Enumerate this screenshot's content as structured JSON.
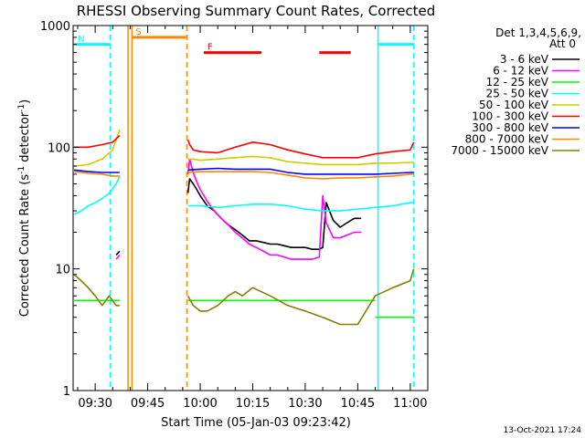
{
  "chart_data": {
    "type": "line",
    "title": "RHESSI Observing Summary Count Rates, Corrected",
    "xlabel": "Start Time (05-Jan-03 09:23:42)",
    "ylabel_main": "Corrected Count Rate (s",
    "ylabel_sup1": "-1",
    "ylabel_mid": " detector",
    "ylabel_sup2": "-1",
    "ylabel_end": ")",
    "yscale": "log",
    "xlim_min": [
      563.7,
      665
    ],
    "ylim": [
      1,
      1000
    ],
    "x_ticks": [
      {
        "value": 570,
        "label": "09:30"
      },
      {
        "value": 585,
        "label": "09:45"
      },
      {
        "value": 600,
        "label": "10:00"
      },
      {
        "value": 615,
        "label": "10:15"
      },
      {
        "value": 630,
        "label": "10:30"
      },
      {
        "value": 645,
        "label": "10:45"
      },
      {
        "value": 660,
        "label": "11:00"
      }
    ],
    "y_ticks": [
      {
        "value": 1,
        "label": "1"
      },
      {
        "value": 10,
        "label": "10"
      },
      {
        "value": 100,
        "label": "100"
      },
      {
        "value": 1000,
        "label": "1000"
      }
    ],
    "legend_header": [
      "Det 1,3,4,5,6,9,",
      "Att 0"
    ],
    "legend_position": "right",
    "series": [
      {
        "name": "3 - 6 keV",
        "color": "#000000",
        "segments": [
          {
            "x": [
              564,
              570,
              576,
              577
            ],
            "y": [
              null,
              null,
              13,
              14
            ]
          },
          {
            "x": [
              596.5,
              597,
              598,
              599,
              600,
              602,
              604,
              606,
              608,
              610,
              612,
              614,
              616,
              618,
              620,
              622,
              624,
              626,
              628,
              630,
              632,
              634,
              635,
              636,
              638,
              640,
              642,
              644,
              646
            ],
            "y": [
              42,
              55,
              50,
              45,
              40,
              33,
              30,
              26,
              23,
              21,
              19,
              17,
              17,
              16.5,
              16,
              16,
              15.5,
              15,
              15,
              15,
              14.5,
              14.5,
              15,
              35,
              25,
              22,
              24,
              26,
              26
            ]
          }
        ]
      },
      {
        "name": "6 - 12 keV",
        "color": "#ff00ff",
        "segments": [
          {
            "x": [
              576,
              577
            ],
            "y": [
              12,
              13
            ]
          },
          {
            "x": [
              596.5,
              597,
              598,
              599,
              600,
              602,
              604,
              606,
              608,
              610,
              612,
              614,
              616,
              618,
              620,
              622,
              624,
              626,
              628,
              630,
              632,
              634,
              635,
              636,
              638,
              640,
              642,
              644,
              646
            ],
            "y": [
              60,
              80,
              62,
              52,
              45,
              36,
              30,
              26,
              23,
              20,
              18,
              16,
              15,
              14,
              13,
              13,
              12.5,
              12,
              12,
              12,
              12,
              12.5,
              40,
              24,
              18,
              18,
              19,
              20,
              20
            ]
          }
        ]
      },
      {
        "name": "12 - 25 keV",
        "color": "#00ff00",
        "segments": [
          {
            "x": [
              564,
              566,
              568,
              570,
              572,
              574,
              577
            ],
            "y": [
              5.5,
              5.5,
              5.5,
              5.5,
              5.5,
              5.5,
              5.5
            ]
          },
          {
            "x": [
              596.5,
              600,
              605,
              610,
              615,
              620,
              625,
              630,
              635,
              640,
              645,
              650
            ],
            "y": [
              5.5,
              5.5,
              5.5,
              5.5,
              5.5,
              5.5,
              5.5,
              5.5,
              5.5,
              5.5,
              5.5,
              5.5
            ]
          },
          {
            "x": [
              650,
              651,
              655,
              660,
              661
            ],
            "y": [
              4,
              4,
              4,
              4,
              4
            ]
          }
        ]
      },
      {
        "name": "25 - 50 keV",
        "color": "#00ffff",
        "segments": [
          {
            "x": [
              564,
              566,
              568,
              570,
              572,
              574,
              576,
              577
            ],
            "y": [
              28,
              30,
              33,
              35,
              38,
              42,
              50,
              58
            ]
          },
          {
            "x": [
              596.5,
              600,
              605,
              610,
              615,
              620,
              625,
              630,
              635,
              640,
              645,
              650,
              655,
              660,
              661
            ],
            "y": [
              33,
              33,
              32,
              33,
              34,
              34,
              33,
              31,
              30,
              30,
              31,
              32,
              33,
              35,
              35
            ]
          }
        ]
      },
      {
        "name": "50 - 100 keV",
        "color": "#cccc00",
        "segments": [
          {
            "x": [
              564,
              568,
              572,
              575,
              577
            ],
            "y": [
              70,
              72,
              80,
              95,
              140
            ]
          },
          {
            "x": [
              596.5,
              598,
              600,
              605,
              610,
              615,
              620,
              625,
              630,
              635,
              640,
              645,
              650,
              655,
              660,
              661
            ],
            "y": [
              80,
              80,
              78,
              80,
              82,
              84,
              82,
              76,
              74,
              72,
              72,
              72,
              74,
              74,
              75,
              75
            ]
          }
        ]
      },
      {
        "name": "100 - 300 keV",
        "color": "#ff0000",
        "segments": [
          {
            "x": [
              564,
              568,
              572,
              575,
              577
            ],
            "y": [
              100,
              100,
              105,
              110,
              125
            ]
          },
          {
            "x": [
              596.5,
              597,
              598,
              600,
              605,
              610,
              615,
              620,
              625,
              630,
              635,
              640,
              645,
              650,
              655,
              660,
              661
            ],
            "y": [
              115,
              105,
              95,
              92,
              90,
              100,
              110,
              105,
              95,
              88,
              82,
              82,
              82,
              88,
              92,
              95,
              110
            ]
          }
        ]
      },
      {
        "name": "300 - 800 keV",
        "color": "#0000ff",
        "segments": [
          {
            "x": [
              564,
              568,
              572,
              575,
              577
            ],
            "y": [
              65,
              63,
              62,
              62,
              62
            ]
          },
          {
            "x": [
              596.5,
              600,
              605,
              610,
              615,
              620,
              625,
              630,
              635,
              640,
              645,
              650,
              655,
              660,
              661
            ],
            "y": [
              65,
              66,
              67,
              66,
              66,
              66,
              62,
              60,
              60,
              60,
              60,
              60,
              61,
              62,
              62
            ]
          }
        ]
      },
      {
        "name": "800 - 7000 keV",
        "color": "#ff8800",
        "segments": [
          {
            "x": [
              564,
              568,
              572,
              575,
              577
            ],
            "y": [
              63,
              61,
              60,
              58,
              58
            ]
          },
          {
            "x": [
              596.5,
              600,
              605,
              610,
              615,
              620,
              625,
              630,
              635,
              640,
              645,
              650,
              655,
              660,
              661
            ],
            "y": [
              62,
              63,
              63,
              63,
              63,
              62,
              59,
              56,
              55,
              56,
              56,
              57,
              58,
              60,
              60
            ]
          }
        ]
      },
      {
        "name": "7000 - 15000 keV",
        "color": "#808000",
        "segments": [
          {
            "x": [
              564,
              566,
              568,
              570,
              572,
              574,
              576,
              577
            ],
            "y": [
              9,
              8,
              7,
              6,
              5,
              6,
              5,
              5
            ]
          },
          {
            "x": [
              596.5,
              598,
              600,
              602,
              605,
              608,
              610,
              612,
              615,
              620,
              625,
              630,
              635,
              640,
              645,
              650,
              655,
              660,
              661
            ],
            "y": [
              6,
              5,
              4.5,
              4.5,
              5,
              6,
              6.5,
              6,
              7,
              6,
              5,
              4.5,
              4,
              3.5,
              3.5,
              6,
              7,
              8,
              10
            ]
          }
        ]
      }
    ],
    "state_bars": [
      {
        "label": "N",
        "color": "#00ffff",
        "x": [
          564,
          574.3
        ],
        "y": 700
      },
      {
        "label": "",
        "color": "#00ffff",
        "x": [
          651,
          661
        ],
        "y": 700
      },
      {
        "label": "S",
        "color": "#ff8800",
        "x": [
          580.5,
          596
        ],
        "y": 800
      },
      {
        "label": "F",
        "color": "#ff0000",
        "x": [
          601,
          617.5
        ],
        "y": 600
      },
      {
        "label": "",
        "color": "#ff0000",
        "x": [
          634,
          643
        ],
        "y": 600
      }
    ],
    "state_lines": [
      {
        "color": "#00ffff",
        "style": "dashed",
        "x": 574.3
      },
      {
        "color": "#00ffff",
        "style": "solid",
        "x": 650.8
      },
      {
        "color": "#00ffff",
        "style": "dashed",
        "x": 661
      },
      {
        "color": "#ff8800",
        "style": "solid",
        "x": 579.4
      },
      {
        "color": "#ff8800",
        "style": "solid",
        "x": 580.5
      },
      {
        "color": "#ff8800",
        "style": "dashed",
        "x": 596.2
      }
    ],
    "grid": false
  },
  "footer": {
    "timestamp": "13-Oct-2021 17:24"
  }
}
